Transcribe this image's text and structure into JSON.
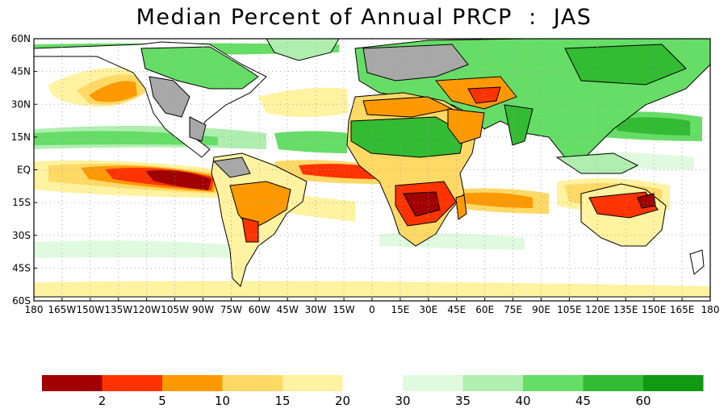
{
  "title": "Median Percent of Annual PRCP  :  JAS",
  "map": {
    "lat_labels": [
      "60N",
      "45N",
      "30N",
      "15N",
      "EQ",
      "15S",
      "30S",
      "45S",
      "60S"
    ],
    "lon_labels": [
      "180",
      "165W",
      "150W",
      "135W",
      "120W",
      "105W",
      "90W",
      "75W",
      "60W",
      "45W",
      "30W",
      "15W",
      "0",
      "15E",
      "30E",
      "45E",
      "60E",
      "75E",
      "90E",
      "105E",
      "120E",
      "135E",
      "150E",
      "165E",
      "180"
    ],
    "lat_range": [
      -60,
      60
    ],
    "lon_range": [
      -180,
      180
    ],
    "grid": "dotted",
    "colors": {
      "frame": "#000000",
      "land_outline": "#000000",
      "borders": "#9a9a9a",
      "no_data_land": "#a8a8a8",
      "ocean_background": "#ffffff"
    }
  },
  "legend": {
    "bins": [
      {
        "color": "#a00000",
        "label": ""
      },
      {
        "color": "#ff3300",
        "label": "2"
      },
      {
        "color": "#ff9900",
        "label": "5"
      },
      {
        "color": "#ffd966",
        "label": "10"
      },
      {
        "color": "#fff2a0",
        "label": "15"
      },
      {
        "color": "#ffffff",
        "label": "20"
      },
      {
        "color": "#e0fae0",
        "label": "30"
      },
      {
        "color": "#b0eeb0",
        "label": "35"
      },
      {
        "color": "#66dd66",
        "label": "40"
      },
      {
        "color": "#33bb33",
        "label": "45"
      },
      {
        "color": "#119911",
        "label": "60"
      }
    ]
  }
}
